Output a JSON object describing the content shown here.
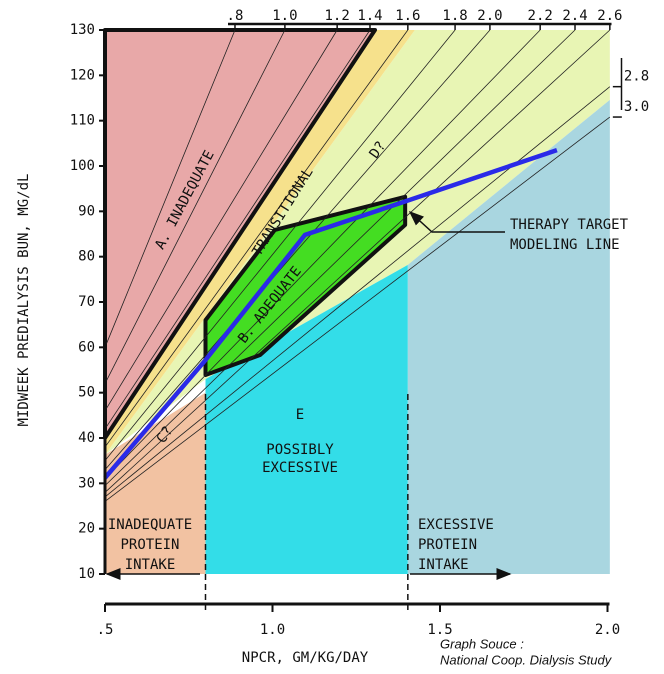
{
  "chart_data": {
    "type": "area",
    "x_label": "NPCR, GM/KG/DAY",
    "y_label": "MIDWEEK PREDIALYSIS BUN, MG/dL",
    "xlim": [
      0.5,
      2.0
    ],
    "xticks": [
      {
        "value": 0.5,
        "label": ".5"
      },
      {
        "value": 1.0,
        "label": "1.0"
      },
      {
        "value": 1.5,
        "label": "1.5"
      },
      {
        "value": 2.0,
        "label": "2.0"
      }
    ],
    "ylim": [
      10,
      130
    ],
    "yticks": [
      10,
      20,
      30,
      40,
      50,
      60,
      70,
      80,
      90,
      100,
      110,
      120,
      130
    ],
    "regions": [
      {
        "name": "D?",
        "color": "#e8f5b4",
        "outline": false,
        "x": [
          1.425,
          2.007,
          2.007,
          1.404,
          0.8,
          0.5
        ],
        "values": [
          130,
          130,
          114.6,
          78.2,
          53,
          36.3
        ]
      },
      {
        "name": "C?",
        "color": "#f2c2a2",
        "outline": false,
        "x": [
          0.5,
          0.8,
          0.8,
          0.5
        ],
        "values": [
          10,
          10,
          50,
          36.3
        ]
      },
      {
        "name": "E",
        "color": "#33dde8",
        "outline": false,
        "x": [
          0.8,
          1.404,
          1.404,
          0.8
        ],
        "values": [
          10,
          10,
          78.2,
          53
        ]
      },
      {
        "color": "#a9d6e0",
        "outline": false,
        "x": [
          1.404,
          2.007,
          2.007,
          1.404
        ],
        "values": [
          10,
          10,
          114.6,
          78.2
        ]
      },
      {
        "name": "TRANSITIONAL",
        "color": "#f6e18c",
        "outline": false,
        "x": [
          1.306,
          1.425,
          0.5,
          0.5
        ],
        "values": [
          130,
          130,
          36.3,
          40
        ]
      },
      {
        "name": "A. INADEQUATE",
        "color": "#e8a8a8",
        "outline": true,
        "x": [
          0.5,
          1.306,
          0.5
        ],
        "values": [
          130,
          130,
          40
        ]
      },
      {
        "name": "B. ADEQUATE",
        "color": "#44dd22",
        "outline": true,
        "x": [
          0.8,
          1.007,
          1.396,
          1.396,
          0.963,
          0.8
        ],
        "values": [
          66,
          85.9,
          93.2,
          87,
          58.3,
          53.9
        ]
      }
    ],
    "ktv_lines": [
      {
        "name": ".8",
        "x": [
          0.5,
          0.888
        ],
        "values": [
          60,
          130
        ]
      },
      {
        "name": "1.0",
        "x": [
          0.5,
          1.037
        ],
        "values": [
          52,
          130
        ]
      },
      {
        "name": "1.2",
        "x": [
          0.5,
          1.193
        ],
        "values": [
          46,
          130
        ]
      },
      {
        "name": "1.4",
        "x": [
          0.5,
          1.291
        ],
        "values": [
          42,
          130
        ]
      },
      {
        "name": "1.6",
        "x": [
          0.5,
          1.404
        ],
        "values": [
          38,
          130
        ]
      },
      {
        "name": "1.8",
        "x": [
          0.5,
          1.545
        ],
        "values": [
          35,
          130
        ]
      },
      {
        "name": "2.0",
        "x": [
          0.5,
          1.649
        ],
        "values": [
          33,
          130
        ]
      },
      {
        "name": "2.2",
        "x": [
          0.5,
          1.799
        ],
        "values": [
          31,
          130
        ]
      },
      {
        "name": "2.4",
        "x": [
          0.5,
          1.903
        ],
        "values": [
          29.5,
          130
        ]
      },
      {
        "name": "2.6",
        "x": [
          0.5,
          2.007
        ],
        "values": [
          28,
          130
        ]
      },
      {
        "name": "2.8",
        "x": [
          0.5,
          2.007
        ],
        "values": [
          27,
          117.5
        ]
      },
      {
        "name": "3.0",
        "x": [
          0.5,
          2.007
        ],
        "values": [
          26,
          110.8
        ]
      }
    ],
    "series": [
      {
        "color": "#2a2ae8",
        "x": [
          0.5,
          0.8,
          1.097,
          1.381,
          1.849
        ],
        "values": [
          31.2,
          57.2,
          84.8,
          91.8,
          103.5
        ]
      }
    ],
    "annotations": [
      {
        "lines": [
          "POSSIBLY",
          "EXCESSIVE"
        ]
      },
      {
        "lines": [
          "INADEQUATE",
          "PROTEIN",
          "INTAKE"
        ]
      },
      {
        "lines": [
          "EXCESSIVE",
          "PROTEIN",
          "INTAKE"
        ]
      },
      {
        "lines": [
          "THERAPY TARGET",
          "MODELING LINE"
        ]
      },
      {
        "lines": [
          "Graph Souce :",
          "National Coop. Dialysis Study"
        ]
      }
    ]
  }
}
